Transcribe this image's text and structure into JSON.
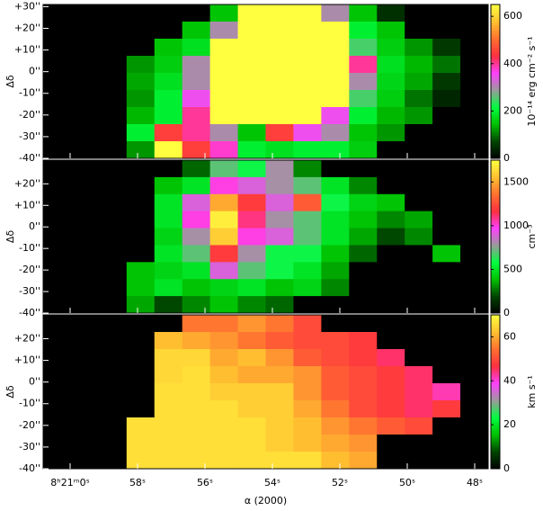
{
  "chart_data": [
    {
      "type": "heatmap",
      "ylabel": "Δδ",
      "xlim": [
        60.8,
        47.6
      ],
      "ylim": [
        -40,
        31
      ],
      "yticks": [
        {
          "value": 30,
          "label": "+30''"
        },
        {
          "value": 20,
          "label": "+20''"
        },
        {
          "value": 10,
          "label": "+10''"
        },
        {
          "value": 0,
          "label": "0''"
        },
        {
          "value": -10,
          "label": "-10''"
        },
        {
          "value": -20,
          "label": "-20''"
        },
        {
          "value": -30,
          "label": "-30''"
        },
        {
          "value": -40,
          "label": "-40''"
        }
      ],
      "colormap": [
        "#000000",
        "#004400",
        "#00c000",
        "#00ff40",
        "#9a9a9a",
        "#ff40ff",
        "#ff3040",
        "#ff7030",
        "#ffc030",
        "#ffff40"
      ],
      "colorbar": {
        "label": "10⁻¹⁴ erg cm⁻² s⁻¹",
        "lim": [
          0,
          650
        ],
        "ticks": [
          0,
          200,
          400,
          600
        ]
      },
      "values": [
        [
          0,
          0,
          0,
          0,
          0,
          0,
          150,
          650,
          650,
          650,
          300,
          150,
          50,
          0,
          0,
          0
        ],
        [
          0,
          0,
          0,
          0,
          0,
          150,
          300,
          650,
          650,
          650,
          650,
          200,
          150,
          0,
          0,
          0
        ],
        [
          0,
          0,
          0,
          0,
          150,
          180,
          650,
          650,
          650,
          650,
          650,
          250,
          160,
          120,
          60,
          0
        ],
        [
          0,
          0,
          0,
          120,
          160,
          300,
          650,
          650,
          650,
          650,
          650,
          400,
          180,
          140,
          100,
          0
        ],
        [
          0,
          0,
          0,
          130,
          180,
          300,
          650,
          650,
          650,
          650,
          650,
          300,
          170,
          130,
          60,
          0
        ],
        [
          0,
          0,
          0,
          120,
          200,
          350,
          650,
          650,
          650,
          650,
          650,
          250,
          160,
          100,
          40,
          0
        ],
        [
          0,
          0,
          0,
          140,
          200,
          400,
          650,
          650,
          650,
          650,
          350,
          200,
          140,
          120,
          0,
          0
        ],
        [
          0,
          0,
          0,
          200,
          450,
          400,
          300,
          150,
          450,
          350,
          300,
          150,
          120,
          0,
          0,
          0
        ],
        [
          0,
          0,
          0,
          120,
          650,
          450,
          380,
          200,
          180,
          200,
          200,
          160,
          0,
          0,
          0,
          0
        ]
      ]
    },
    {
      "type": "heatmap",
      "ylabel": "Δδ",
      "xlim": [
        60.8,
        47.6
      ],
      "ylim": [
        -40,
        31
      ],
      "yticks": [
        {
          "value": 20,
          "label": "+20''"
        },
        {
          "value": 10,
          "label": "+10''"
        },
        {
          "value": 0,
          "label": "0''"
        },
        {
          "value": -10,
          "label": "-10''"
        },
        {
          "value": -20,
          "label": "-20''"
        },
        {
          "value": -30,
          "label": "-30''"
        },
        {
          "value": -40,
          "label": "-40''"
        }
      ],
      "colormap": [
        "#000000",
        "#004400",
        "#00c000",
        "#00ff40",
        "#9a9a9a",
        "#ff40ff",
        "#ff3040",
        "#ff7030",
        "#ffc030",
        "#ffff40"
      ],
      "colorbar": {
        "label": "cm⁻³",
        "lim": [
          0,
          1750
        ],
        "ticks": [
          0,
          500,
          1000,
          1500
        ]
      },
      "values": [
        [
          0,
          0,
          0,
          0,
          0,
          250,
          700,
          600,
          800,
          300,
          0,
          0,
          0,
          0,
          0,
          0
        ],
        [
          0,
          0,
          0,
          0,
          400,
          500,
          1000,
          900,
          800,
          700,
          500,
          300,
          0,
          0,
          0,
          0
        ],
        [
          0,
          0,
          0,
          0,
          500,
          900,
          1500,
          1200,
          900,
          1300,
          600,
          450,
          400,
          0,
          0,
          0
        ],
        [
          0,
          0,
          0,
          0,
          500,
          1000,
          1700,
          1100,
          800,
          700,
          500,
          400,
          300,
          350,
          0,
          0
        ],
        [
          0,
          0,
          0,
          0,
          450,
          800,
          1600,
          1000,
          900,
          700,
          500,
          350,
          200,
          300,
          0,
          0
        ],
        [
          0,
          0,
          0,
          0,
          500,
          700,
          1200,
          800,
          600,
          600,
          400,
          250,
          0,
          0,
          400,
          0
        ],
        [
          0,
          0,
          0,
          400,
          450,
          500,
          900,
          700,
          600,
          500,
          350,
          0,
          0,
          0,
          0,
          0
        ],
        [
          0,
          0,
          0,
          400,
          500,
          400,
          450,
          500,
          400,
          450,
          300,
          0,
          0,
          0,
          0,
          0
        ],
        [
          0,
          0,
          0,
          350,
          200,
          300,
          400,
          300,
          250,
          0,
          0,
          0,
          0,
          0,
          0,
          0
        ]
      ]
    },
    {
      "type": "heatmap",
      "ylabel": "Δδ",
      "xlabel": "α (2000)",
      "xlim": [
        60.8,
        47.6
      ],
      "ylim": [
        -40,
        31
      ],
      "xticks": [
        {
          "value": 60,
          "label": "8ʰ21ᵐ0ˢ"
        },
        {
          "value": 58,
          "label": "58ˢ"
        },
        {
          "value": 56,
          "label": "56ˢ"
        },
        {
          "value": 54,
          "label": "54ˢ"
        },
        {
          "value": 52,
          "label": "52ˢ"
        },
        {
          "value": 50,
          "label": "50ˢ"
        },
        {
          "value": 48,
          "label": "48ˢ"
        }
      ],
      "yticks": [
        {
          "value": 20,
          "label": "+20''"
        },
        {
          "value": 10,
          "label": "+10''"
        },
        {
          "value": 0,
          "label": "0''"
        },
        {
          "value": -10,
          "label": "-10''"
        },
        {
          "value": -20,
          "label": "-20''"
        },
        {
          "value": -30,
          "label": "-30''"
        },
        {
          "value": -40,
          "label": "-40''"
        }
      ],
      "colormap": [
        "#000000",
        "#004400",
        "#00c000",
        "#00ff40",
        "#9a9a9a",
        "#ff40ff",
        "#ff3040",
        "#ff7030",
        "#ffc030",
        "#ffff40"
      ],
      "colorbar": {
        "label": "km s⁻¹",
        "lim": [
          0,
          70
        ],
        "ticks": [
          0,
          20,
          40,
          60
        ]
      },
      "values": [
        [
          0,
          0,
          0,
          0,
          0,
          55,
          55,
          58,
          55,
          50,
          0,
          0,
          0,
          0,
          0,
          0
        ],
        [
          0,
          0,
          0,
          0,
          62,
          60,
          58,
          55,
          52,
          50,
          50,
          48,
          0,
          0,
          0,
          0
        ],
        [
          0,
          0,
          0,
          0,
          65,
          65,
          60,
          62,
          58,
          52,
          50,
          48,
          45,
          0,
          0,
          0
        ],
        [
          0,
          0,
          0,
          0,
          65,
          66,
          62,
          60,
          60,
          58,
          52,
          50,
          48,
          45,
          0,
          0
        ],
        [
          0,
          0,
          0,
          0,
          66,
          66,
          64,
          64,
          64,
          58,
          52,
          50,
          48,
          45,
          42,
          0
        ],
        [
          0,
          0,
          0,
          0,
          66,
          66,
          66,
          64,
          64,
          60,
          55,
          50,
          48,
          45,
          48,
          0
        ],
        [
          0,
          0,
          0,
          66,
          66,
          66,
          66,
          66,
          64,
          62,
          58,
          55,
          52,
          50,
          0,
          0
        ],
        [
          0,
          0,
          0,
          66,
          66,
          66,
          66,
          66,
          64,
          62,
          60,
          58,
          0,
          0,
          0,
          0
        ],
        [
          0,
          0,
          0,
          66,
          66,
          66,
          66,
          66,
          66,
          66,
          62,
          60,
          0,
          0,
          0,
          0
        ]
      ]
    }
  ]
}
